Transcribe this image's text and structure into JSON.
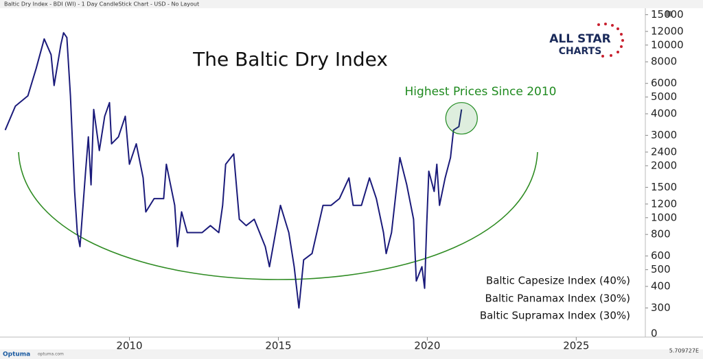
{
  "chart_data": {
    "type": "line",
    "header": "Baltic Dry Index - BDI (WI) - 1 Day CandleStick Chart - USD - No Layout",
    "title": "The Baltic Dry Index",
    "annotation": "Highest Prices Since 2010",
    "notes": [
      "Baltic Capesize Index (40%)",
      "Baltic Panamax Index (30%)",
      "Baltic Supramax Index (30%)"
    ],
    "logo": [
      "ALL STAR",
      "CHARTS"
    ],
    "footer_brand": "Optuma",
    "footer_site": "optuma.com",
    "corner_readout": "5.709727E",
    "axis_bottom_label": "0",
    "log_scale": true,
    "x": [
      2005.83,
      2006.17,
      2006.59,
      2006.87,
      2007.14,
      2007.37,
      2007.47,
      2007.7,
      2007.79,
      2007.9,
      2008.02,
      2008.16,
      2008.25,
      2008.34,
      2008.53,
      2008.62,
      2008.71,
      2008.8,
      2008.99,
      2009.17,
      2009.33,
      2009.4,
      2009.63,
      2009.86,
      2010.0,
      2010.23,
      2010.46,
      2010.55,
      2010.83,
      2011.15,
      2011.24,
      2011.52,
      2011.61,
      2011.75,
      2011.94,
      2012.17,
      2012.44,
      2012.72,
      2013.0,
      2013.13,
      2013.23,
      2013.5,
      2013.69,
      2013.92,
      2014.19,
      2014.56,
      2014.7,
      2015.07,
      2015.35,
      2015.53,
      2015.69,
      2015.85,
      2016.13,
      2016.5,
      2016.77,
      2017.05,
      2017.37,
      2017.51,
      2017.79,
      2018.06,
      2018.29,
      2018.53,
      2018.62,
      2018.8,
      2019.08,
      2019.31,
      2019.54,
      2019.63,
      2019.82,
      2019.91,
      2019.98,
      2020.05,
      2020.23,
      2020.32,
      2020.41,
      2020.6,
      2020.78,
      2020.88,
      2021.06,
      2021.15
    ],
    "series": [
      {
        "name": "BDI",
        "color": "#1a1a7a",
        "values": [
          3220,
          4430,
          5080,
          7330,
          10860,
          8800,
          5830,
          10090,
          11790,
          11060,
          5080,
          1420,
          820,
          680,
          1860,
          2940,
          1550,
          4240,
          2450,
          3870,
          4640,
          2680,
          2940,
          3870,
          2040,
          2680,
          1700,
          1080,
          1290,
          1290,
          2040,
          1180,
          680,
          1080,
          820,
          820,
          820,
          900,
          820,
          1180,
          2040,
          2340,
          980,
          900,
          980,
          680,
          520,
          1180,
          820,
          520,
          300,
          570,
          620,
          1180,
          1180,
          1290,
          1700,
          1180,
          1180,
          1700,
          1290,
          820,
          620,
          820,
          2230,
          1550,
          980,
          430,
          520,
          390,
          900,
          1860,
          1420,
          2040,
          1180,
          1700,
          2230,
          3220,
          3370,
          4240
        ]
      }
    ],
    "xlim": [
      2005.77,
      2027.32
    ],
    "xticks": [
      2010,
      2015,
      2020,
      2025
    ],
    "ylim": [
      213,
      16200
    ],
    "yticks": [
      15000,
      12000,
      10000,
      8000,
      6000,
      5000,
      4000,
      3000,
      2400,
      2000,
      1500,
      1200,
      1000,
      800,
      600,
      500,
      400,
      300
    ],
    "annotation_color": "#1f8a1f",
    "curve_color": "#2e8b22"
  }
}
